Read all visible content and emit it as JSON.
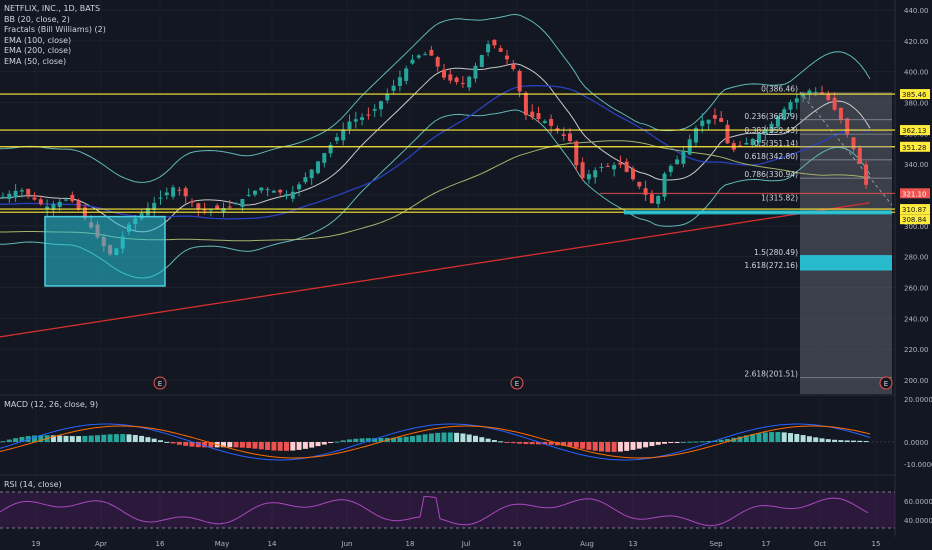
{
  "legend": {
    "title": "NETFLIX, INC., 1D, BATS",
    "studies": [
      "BB (20, close, 2)",
      "Fractals (Bill Williams) (2)",
      "EMA (100, close)",
      "EMA (200, close)",
      "EMA (50, close)"
    ]
  },
  "macd_label": "MACD (12, 26, close, 9)",
  "rsi_label": "RSI (14, close)",
  "colors": {
    "background": "#131722",
    "up": "#26a69a",
    "down": "#ef5350",
    "fib_line": "#ffeb3b",
    "box_fill": "#26c6da",
    "bb": "#5fb8b8",
    "ema50": "#c9c9c9",
    "ema100": "#2a3fbf",
    "ema200": "#d32f2f",
    "ema_extra": "#a5b36b",
    "rsi": "#9c27b0",
    "macd": "#2962ff",
    "signal": "#ff6d00"
  },
  "chart_data": {
    "type": "candlestick",
    "y_axis_labels": [
      "440.00",
      "420.00",
      "400.00",
      "380.00",
      "360.00",
      "340.00",
      "320.00",
      "300.00",
      "280.00",
      "260.00",
      "240.00",
      "220.00",
      "200.00"
    ],
    "ylim": [
      190,
      445
    ],
    "x_axis_labels": [
      "19",
      "Apr",
      "16",
      "May",
      "14",
      "Jun",
      "18",
      "Jul",
      "16",
      "Aug",
      "13",
      "Sep",
      "17",
      "Oct",
      "15"
    ],
    "price_tags": [
      "385.46",
      "362.13",
      "351.28",
      "321.10",
      "310.87",
      "308.84"
    ],
    "fib_levels": [
      {
        "label": "0(386.46)",
        "value": 386.46
      },
      {
        "label": "0.236(368.79)",
        "value": 368.79
      },
      {
        "label": "0.382(359.43)",
        "value": 359.43
      },
      {
        "label": "0.5(351.14)",
        "value": 351.14
      },
      {
        "label": "0.618(342.80)",
        "value": 342.8
      },
      {
        "label": "0.786(330.94)",
        "value": 330.94
      },
      {
        "label": "1(315.82)",
        "value": 315.82
      },
      {
        "label": "1.5(280.49)",
        "value": 280.49
      },
      {
        "label": "1.618(272.16)",
        "value": 272.16
      },
      {
        "label": "2.618(201.51)",
        "value": 201.51
      }
    ],
    "horizontal_lines": [
      385.46,
      362.13,
      351.28,
      310.87,
      308.84
    ],
    "earnings_markers": [
      "E",
      "E",
      "E"
    ],
    "macd_axis_labels": [
      "20.0000",
      "0.0000",
      "-10.0000"
    ],
    "rsi_axis_labels": [
      "60.0000",
      "40.0000"
    ]
  }
}
